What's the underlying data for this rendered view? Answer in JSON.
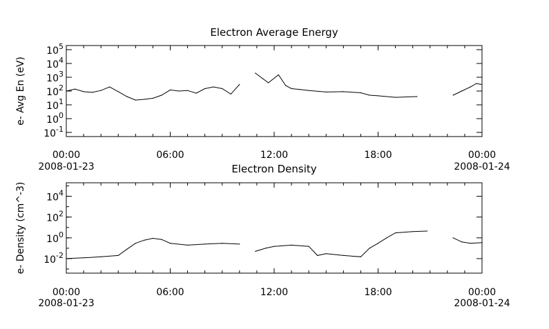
{
  "chart_data": [
    {
      "type": "line",
      "title": "Electron Average Energy",
      "ylabel": "e- Avg En (eV)",
      "yscale": "log",
      "ylim": [
        0.05,
        200000
      ],
      "xlim": [
        "2008-01-23T00:00",
        "2008-01-24T00:00"
      ],
      "x_ticks": [
        {
          "value": "2008-01-23T00:00",
          "label": "00:00",
          "label2": "2008-01-23"
        },
        {
          "value": "2008-01-23T06:00",
          "label": "06:00",
          "label2": ""
        },
        {
          "value": "2008-01-23T12:00",
          "label": "12:00",
          "label2": ""
        },
        {
          "value": "2008-01-23T18:00",
          "label": "18:00",
          "label2": ""
        },
        {
          "value": "2008-01-24T00:00",
          "label": "00:00",
          "label2": "2008-01-24"
        }
      ],
      "y_ticks": [
        {
          "value": 0.1,
          "base": "10",
          "exp": "-1"
        },
        {
          "value": 1,
          "base": "10",
          "exp": "0"
        },
        {
          "value": 10,
          "base": "10",
          "exp": "1"
        },
        {
          "value": 100,
          "base": "10",
          "exp": "2"
        },
        {
          "value": 1000,
          "base": "10",
          "exp": "3"
        },
        {
          "value": 10000,
          "base": "10",
          "exp": "4"
        },
        {
          "value": 100000,
          "base": "10",
          "exp": "5"
        }
      ],
      "segments": [
        [
          [
            "2008-01-23T00:00",
            100
          ],
          [
            "2008-01-23T00:30",
            140
          ],
          [
            "2008-01-23T01:00",
            90
          ],
          [
            "2008-01-23T01:30",
            80
          ],
          [
            "2008-01-23T02:00",
            110
          ],
          [
            "2008-01-23T02:30",
            200
          ],
          [
            "2008-01-23T03:00",
            90
          ],
          [
            "2008-01-23T03:30",
            40
          ],
          [
            "2008-01-23T04:00",
            22
          ],
          [
            "2008-01-23T04:30",
            25
          ],
          [
            "2008-01-23T05:00",
            30
          ],
          [
            "2008-01-23T05:30",
            50
          ],
          [
            "2008-01-23T06:00",
            120
          ],
          [
            "2008-01-23T06:30",
            100
          ],
          [
            "2008-01-23T07:00",
            110
          ],
          [
            "2008-01-23T07:30",
            70
          ],
          [
            "2008-01-23T08:00",
            150
          ],
          [
            "2008-01-23T08:30",
            200
          ],
          [
            "2008-01-23T09:00",
            150
          ],
          [
            "2008-01-23T09:30",
            60
          ],
          [
            "2008-01-23T10:00",
            300
          ]
        ],
        [
          [
            "2008-01-23T10:55",
            2000
          ],
          [
            "2008-01-23T11:20",
            800
          ],
          [
            "2008-01-23T11:40",
            400
          ],
          [
            "2008-01-23T12:15",
            1500
          ],
          [
            "2008-01-23T12:40",
            250
          ],
          [
            "2008-01-23T13:00",
            150
          ],
          [
            "2008-01-23T13:30",
            130
          ],
          [
            "2008-01-23T14:00",
            110
          ],
          [
            "2008-01-23T15:00",
            85
          ],
          [
            "2008-01-23T16:00",
            90
          ],
          [
            "2008-01-23T17:00",
            75
          ],
          [
            "2008-01-23T17:30",
            50
          ],
          [
            "2008-01-23T18:00",
            45
          ],
          [
            "2008-01-23T19:00",
            35
          ],
          [
            "2008-01-23T20:15",
            40
          ]
        ],
        [
          [
            "2008-01-23T22:20",
            50
          ],
          [
            "2008-01-23T22:50",
            100
          ],
          [
            "2008-01-23T23:20",
            200
          ],
          [
            "2008-01-23T23:40",
            350
          ],
          [
            "2008-01-24T00:00",
            300
          ]
        ]
      ]
    },
    {
      "type": "line",
      "title": "Electron Density",
      "ylabel": "e- Density (cm^-3)",
      "yscale": "log",
      "ylim": [
        0.0004,
        200000
      ],
      "xlim": [
        "2008-01-23T00:00",
        "2008-01-24T00:00"
      ],
      "x_ticks": [
        {
          "value": "2008-01-23T00:00",
          "label": "00:00",
          "label2": "2008-01-23"
        },
        {
          "value": "2008-01-23T06:00",
          "label": "06:00",
          "label2": ""
        },
        {
          "value": "2008-01-23T12:00",
          "label": "12:00",
          "label2": ""
        },
        {
          "value": "2008-01-23T18:00",
          "label": "18:00",
          "label2": ""
        },
        {
          "value": "2008-01-24T00:00",
          "label": "00:00",
          "label2": "2008-01-24"
        }
      ],
      "y_ticks": [
        {
          "value": 0.01,
          "base": "10",
          "exp": "-2"
        },
        {
          "value": 1,
          "base": "10",
          "exp": "0"
        },
        {
          "value": 100,
          "base": "10",
          "exp": "2"
        },
        {
          "value": 10000,
          "base": "10",
          "exp": "4"
        }
      ],
      "segments": [
        [
          [
            "2008-01-23T00:00",
            0.01
          ],
          [
            "2008-01-23T01:00",
            0.012
          ],
          [
            "2008-01-23T02:00",
            0.015
          ],
          [
            "2008-01-23T03:00",
            0.02
          ],
          [
            "2008-01-23T03:30",
            0.08
          ],
          [
            "2008-01-23T04:00",
            0.3
          ],
          [
            "2008-01-23T04:30",
            0.6
          ],
          [
            "2008-01-23T05:00",
            0.9
          ],
          [
            "2008-01-23T05:30",
            0.7
          ],
          [
            "2008-01-23T06:00",
            0.3
          ],
          [
            "2008-01-23T07:00",
            0.2
          ],
          [
            "2008-01-23T08:00",
            0.25
          ],
          [
            "2008-01-23T09:00",
            0.3
          ],
          [
            "2008-01-23T10:00",
            0.25
          ]
        ],
        [
          [
            "2008-01-23T10:55",
            0.05
          ],
          [
            "2008-01-23T11:30",
            0.1
          ],
          [
            "2008-01-23T12:00",
            0.15
          ],
          [
            "2008-01-23T13:00",
            0.2
          ],
          [
            "2008-01-23T14:00",
            0.15
          ],
          [
            "2008-01-23T14:30",
            0.02
          ],
          [
            "2008-01-23T15:00",
            0.03
          ],
          [
            "2008-01-23T16:00",
            0.02
          ],
          [
            "2008-01-23T17:00",
            0.015
          ],
          [
            "2008-01-23T17:30",
            0.1
          ],
          [
            "2008-01-23T18:00",
            0.3
          ],
          [
            "2008-01-23T18:30",
            1
          ],
          [
            "2008-01-23T19:00",
            3
          ],
          [
            "2008-01-23T20:00",
            4
          ],
          [
            "2008-01-23T20:50",
            4.5
          ]
        ],
        [
          [
            "2008-01-23T22:20",
            1
          ],
          [
            "2008-01-23T22:50",
            0.4
          ],
          [
            "2008-01-23T23:20",
            0.3
          ],
          [
            "2008-01-24T00:00",
            0.35
          ]
        ]
      ]
    }
  ]
}
